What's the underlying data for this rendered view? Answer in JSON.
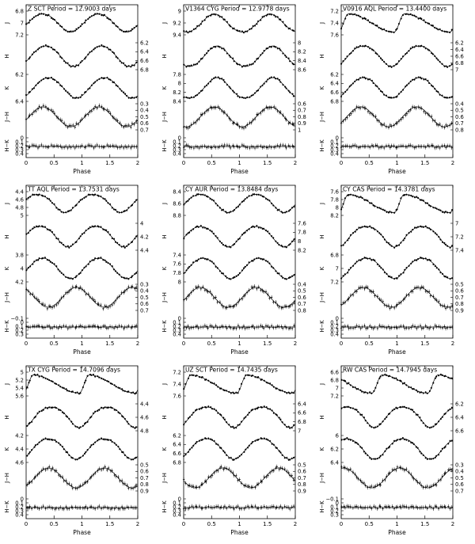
{
  "figure": {
    "xlabel": "Phase",
    "row_labels": [
      "J",
      "H",
      "K",
      "J−H",
      "H−K"
    ],
    "colors": {
      "ink": "#000000",
      "background": "#ffffff"
    }
  },
  "chart_data": [
    {
      "type": "scatter",
      "star": "Z SCT",
      "period": "12.9003",
      "title": "Z SCT        Period = 12.9003 days",
      "ticks": {
        "J": {
          "side": "left",
          "labels": [
            "6.8",
            "7",
            "7.2"
          ]
        },
        "H": {
          "side": "right",
          "labels": [
            "6.2",
            "6.4",
            "6.6",
            "6.8"
          ]
        },
        "K": {
          "side": "left",
          "labels": [
            "6.2",
            "6.4"
          ]
        },
        "J−H": {
          "side": "right",
          "labels": [
            "0.3",
            "0.4",
            "0.5",
            "0.6",
            "0.7"
          ]
        },
        "H−K": {
          "side": "left",
          "labels": [
            "0",
            "0.1",
            "0.2",
            "0.3",
            "0.4"
          ]
        }
      },
      "series": [
        {
          "shape": "smooth",
          "phase_of_min": 0.8,
          "asymmetry": 0.1
        },
        {
          "shape": "smooth",
          "phase_of_min": 0.85,
          "asymmetry": 0.1
        },
        {
          "shape": "smooth",
          "phase_of_min": 0.9,
          "asymmetry": 0.1
        },
        {
          "shape": "smooth",
          "phase_of_min": 0.8,
          "asymmetry": 0
        }
      ],
      "xlim": [
        0,
        2
      ],
      "xticks": [
        "0",
        "0.5",
        "1",
        "1.5",
        "2"
      ]
    },
    {
      "type": "scatter",
      "star": "V1364 CYG",
      "period": "12.9778",
      "title": "V1364 CYG   Period = 12.9778 days",
      "ticks": {
        "J": {
          "side": "left",
          "labels": [
            "9",
            "9.2",
            "9.4"
          ]
        },
        "H": {
          "side": "right",
          "labels": [
            "8",
            "8.2",
            "8.4",
            "8.6"
          ]
        },
        "K": {
          "side": "left",
          "labels": [
            "7.8",
            "8",
            "8.2",
            "8.4"
          ]
        },
        "J−H": {
          "side": "right",
          "labels": [
            "0.6",
            "0.7",
            "0.8",
            "0.9",
            "1"
          ]
        },
        "H−K": {
          "side": "left",
          "labels": [
            "0",
            "0.1",
            "0.2",
            "0.3",
            "0.4"
          ]
        }
      },
      "series": [
        {
          "shape": "smooth",
          "phase_of_min": 0.05,
          "asymmetry": -0.1
        },
        {
          "shape": "smooth",
          "phase_of_min": 0.1,
          "asymmetry": -0.1
        },
        {
          "shape": "smooth",
          "phase_of_min": 0.1,
          "asymmetry": -0.1
        },
        {
          "shape": "smooth",
          "phase_of_min": 0.05,
          "asymmetry": 0
        }
      ],
      "xlim": [
        0,
        2
      ],
      "xticks": [
        "0",
        "0.5",
        "1",
        "1.5",
        "2"
      ]
    },
    {
      "type": "scatter",
      "star": "V0916 AQL",
      "period": "13.4400",
      "title": "V0916 AQL   Period = 13.4400 days",
      "ticks": {
        "J": {
          "side": "left",
          "labels": [
            "7.2",
            "7.4",
            "7.6"
          ]
        },
        "H": {
          "side": "right",
          "labels": [
            "6.2",
            "6.4",
            "6.6",
            "6.8",
            "7"
          ]
        },
        "K": {
          "side": "left",
          "labels": [
            "6.2",
            "6.4",
            "6.6",
            "6.8"
          ]
        },
        "J−H": {
          "side": "right",
          "labels": [
            "0.4",
            "0.5",
            "0.6",
            "0.7",
            "0.8"
          ]
        },
        "H−K": {
          "side": "left",
          "labels": [
            "0",
            "0.1",
            "0.2",
            "0.3",
            "0.4"
          ]
        }
      },
      "series": [
        {
          "shape": "sawtooth",
          "phase_of_min": 0.95,
          "asymmetry": 0.5
        },
        {
          "shape": "smooth",
          "phase_of_min": 0.9,
          "asymmetry": 0.2
        },
        {
          "shape": "smooth",
          "phase_of_min": 0.9,
          "asymmetry": 0.1
        },
        {
          "shape": "smooth",
          "phase_of_min": 0.85,
          "asymmetry": 0
        }
      ],
      "xlim": [
        0,
        2
      ],
      "xticks": [
        "0",
        "0.5",
        "1",
        "1.5",
        "2"
      ]
    },
    {
      "type": "scatter",
      "star": "TT AQL",
      "period": "13.7531",
      "title": "TT AQL        Period = 13.7531 days",
      "ticks": {
        "J": {
          "side": "left",
          "labels": [
            "4.4",
            "4.6",
            "4.8",
            "5"
          ]
        },
        "H": {
          "side": "right",
          "labels": [
            "4",
            "4.2",
            "4.4"
          ]
        },
        "K": {
          "side": "left",
          "labels": [
            "3.8",
            "4",
            "4.2"
          ]
        },
        "J−H": {
          "side": "right",
          "labels": [
            "0.3",
            "0.4",
            "0.5",
            "0.6",
            "0.7"
          ]
        },
        "H−K": {
          "side": "left",
          "labels": [
            "−0.1",
            "0",
            "0.1",
            "0.2",
            "0.3"
          ]
        }
      },
      "series": [
        {
          "shape": "smooth",
          "phase_of_min": 0.7,
          "asymmetry": 0.2
        },
        {
          "shape": "smooth",
          "phase_of_min": 0.75,
          "asymmetry": 0.2
        },
        {
          "shape": "smooth",
          "phase_of_min": 0.8,
          "asymmetry": 0.1
        },
        {
          "shape": "smooth",
          "phase_of_min": 0.4,
          "asymmetry": 0
        }
      ],
      "xlim": [
        0,
        2
      ],
      "xticks": [
        "0",
        "0.5",
        "1",
        "1.5",
        "2"
      ]
    },
    {
      "type": "scatter",
      "star": "CY AUR",
      "period": "13.8484",
      "title": "CY AUR        Period = 13.8484 days",
      "ticks": {
        "J": {
          "side": "left",
          "labels": [
            "8.4",
            "8.6",
            "8.8"
          ]
        },
        "H": {
          "side": "right",
          "labels": [
            "7.6",
            "7.8",
            "8",
            "8.2"
          ]
        },
        "K": {
          "side": "left",
          "labels": [
            "7.4",
            "7.6",
            "7.8",
            "8"
          ]
        },
        "J−H": {
          "side": "right",
          "labels": [
            "0.4",
            "0.5",
            "0.6",
            "0.7",
            "0.8"
          ]
        },
        "H−K": {
          "side": "left",
          "labels": [
            "0",
            "0.1",
            "0.2",
            "0.3",
            "0.4"
          ]
        }
      },
      "series": [
        {
          "shape": "smooth",
          "phase_of_min": 0.8,
          "asymmetry": 0.2
        },
        {
          "shape": "smooth",
          "phase_of_min": 0.8,
          "asymmetry": 0.2
        },
        {
          "shape": "smooth",
          "phase_of_min": 0.85,
          "asymmetry": 0.1
        },
        {
          "shape": "smooth",
          "phase_of_min": 0.8,
          "asymmetry": 0
        }
      ],
      "xlim": [
        0,
        2
      ],
      "xticks": [
        "0",
        "0.5",
        "1",
        "1.5",
        "2"
      ]
    },
    {
      "type": "scatter",
      "star": "CY CAS",
      "period": "14.3781",
      "title": "CY CAS        Period = 14.3781 days",
      "ticks": {
        "J": {
          "side": "left",
          "labels": [
            "7.6",
            "7.8",
            "8",
            "8.2"
          ]
        },
        "H": {
          "side": "right",
          "labels": [
            "7",
            "7.2",
            "7.4"
          ]
        },
        "K": {
          "side": "left",
          "labels": [
            "6.8",
            "7",
            "7.2"
          ]
        },
        "J−H": {
          "side": "right",
          "labels": [
            "0.5",
            "0.6",
            "0.7",
            "0.8",
            "0.9"
          ]
        },
        "H−K": {
          "side": "left",
          "labels": [
            "0",
            "0.1",
            "0.2",
            "0.3",
            "0.4"
          ]
        }
      },
      "series": [
        {
          "shape": "sawtooth",
          "phase_of_min": 0.95,
          "asymmetry": 0.4
        },
        {
          "shape": "smooth",
          "phase_of_min": 0.95,
          "asymmetry": 0.3
        },
        {
          "shape": "smooth",
          "phase_of_min": 0.95,
          "asymmetry": 0.2
        },
        {
          "shape": "smooth",
          "phase_of_min": 0.9,
          "asymmetry": 0
        }
      ],
      "xlim": [
        0,
        2
      ],
      "xticks": [
        "0",
        "0.5",
        "1",
        "1.5",
        "2"
      ]
    },
    {
      "type": "scatter",
      "star": "TX CYG",
      "period": "14.7096",
      "title": "TX CYG        Period = 14.7096 days",
      "ticks": {
        "J": {
          "side": "left",
          "labels": [
            "5",
            "5.2",
            "5.4",
            "5.6"
          ]
        },
        "H": {
          "side": "right",
          "labels": [
            "4.4",
            "4.6",
            "4.8"
          ]
        },
        "K": {
          "side": "left",
          "labels": [
            "4.2",
            "4.4",
            "4.6"
          ]
        },
        "J−H": {
          "side": "right",
          "labels": [
            "0.5",
            "0.6",
            "0.7",
            "0.8",
            "0.9"
          ]
        },
        "H−K": {
          "side": "left",
          "labels": [
            "0",
            "0.1",
            "0.2",
            "0.3",
            "0.4"
          ]
        }
      },
      "series": [
        {
          "shape": "sawtooth",
          "phase_of_min": 0.95,
          "asymmetry": 0.4
        },
        {
          "shape": "smooth",
          "phase_of_min": 0.95,
          "asymmetry": 0.3
        },
        {
          "shape": "smooth",
          "phase_of_min": 0.9,
          "asymmetry": 0.2
        },
        {
          "shape": "smooth",
          "phase_of_min": 0.9,
          "asymmetry": 0
        }
      ],
      "xlim": [
        0,
        2
      ],
      "xticks": [
        "0",
        "0.5",
        "1",
        "1.5",
        "2"
      ]
    },
    {
      "type": "scatter",
      "star": "UZ SCT",
      "period": "14.7435",
      "title": "UZ SCT        Period = 14.7435 days",
      "ticks": {
        "J": {
          "side": "left",
          "labels": [
            "7.2",
            "7.4",
            "7.6"
          ]
        },
        "H": {
          "side": "right",
          "labels": [
            "6.4",
            "6.6",
            "6.8",
            "7"
          ]
        },
        "K": {
          "side": "left",
          "labels": [
            "6.2",
            "6.4",
            "6.6",
            "6.8"
          ]
        },
        "J−H": {
          "side": "right",
          "labels": [
            "0.5",
            "0.6",
            "0.7",
            "0.8",
            "0.9"
          ]
        },
        "H−K": {
          "side": "left",
          "labels": [
            "0",
            "0.1",
            "0.2",
            "0.3",
            "0.4"
          ]
        }
      },
      "series": [
        {
          "shape": "sawtooth",
          "phase_of_min": 0.95,
          "asymmetry": 0.45
        },
        {
          "shape": "smooth",
          "phase_of_min": 0.9,
          "asymmetry": 0.3
        },
        {
          "shape": "smooth",
          "phase_of_min": 0.9,
          "asymmetry": 0.2
        },
        {
          "shape": "smooth",
          "phase_of_min": 0.2,
          "asymmetry": 0
        }
      ],
      "xlim": [
        0,
        2
      ],
      "xticks": [
        "0",
        "0.5",
        "1",
        "1.5",
        "2"
      ]
    },
    {
      "type": "scatter",
      "star": "RW CAS",
      "period": "14.7945",
      "title": "RW CAS        Period = 14.7945 days",
      "ticks": {
        "J": {
          "side": "left",
          "labels": [
            "6.6",
            "6.8",
            "7",
            "7.2"
          ]
        },
        "H": {
          "side": "right",
          "labels": [
            "6.2",
            "6.4",
            "6.6"
          ]
        },
        "K": {
          "side": "left",
          "labels": [
            "6",
            "6.2",
            "6.4"
          ]
        },
        "J−H": {
          "side": "right",
          "labels": [
            "0.3",
            "0.4",
            "0.5",
            "0.6",
            "0.7"
          ]
        },
        "H−K": {
          "side": "left",
          "labels": [
            "−0.1",
            "0",
            "0.1",
            "0.2",
            "0.3"
          ]
        }
      },
      "series": [
        {
          "shape": "sawtooth",
          "phase_of_min": 0.55,
          "asymmetry": 0.4
        },
        {
          "shape": "smooth",
          "phase_of_min": 0.6,
          "asymmetry": 0.3
        },
        {
          "shape": "smooth",
          "phase_of_min": 0.6,
          "asymmetry": 0.2
        },
        {
          "shape": "smooth",
          "phase_of_min": 0.55,
          "asymmetry": 0
        }
      ],
      "xlim": [
        0,
        2
      ],
      "xticks": [
        "0",
        "0.5",
        "1",
        "1.5",
        "2"
      ]
    }
  ]
}
